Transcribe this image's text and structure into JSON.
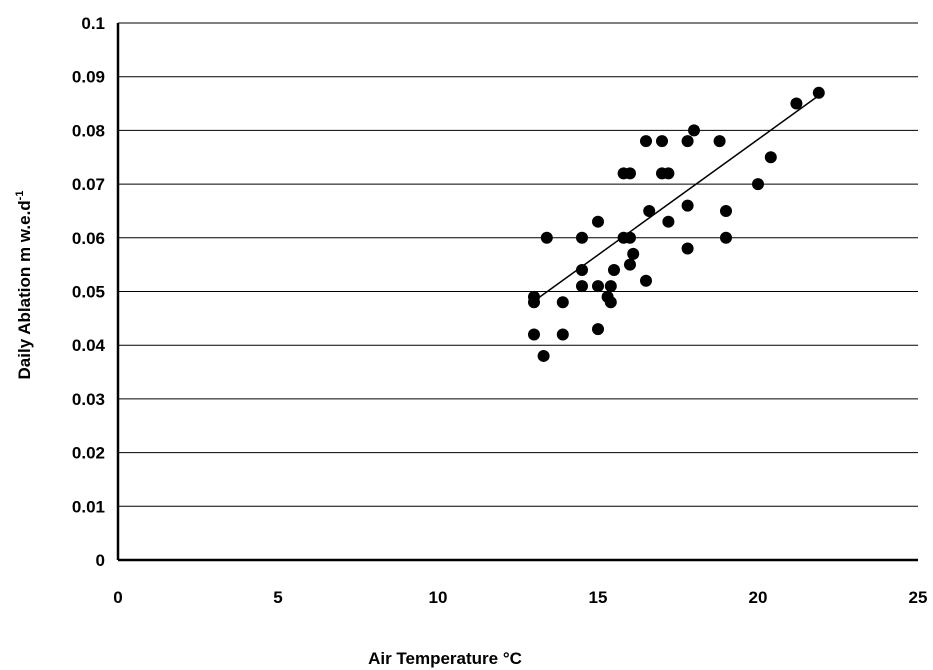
{
  "chart_data": {
    "type": "scatter",
    "title": "",
    "xlabel": "Air Temperature °C",
    "ylabel_main": "Daily Ablation m w.e.d",
    "ylabel_sup": "-1",
    "xlim": [
      0,
      25
    ],
    "ylim": [
      0,
      0.1
    ],
    "x_ticks": [
      "0",
      "5",
      "10",
      "15",
      "20",
      "25"
    ],
    "y_ticks": [
      "0",
      "0.01",
      "0.02",
      "0.03",
      "0.04",
      "0.05",
      "0.06",
      "0.07",
      "0.08",
      "0.09",
      "0.1"
    ],
    "grid": "horizontal",
    "legend": "none",
    "marker_color": "#000000",
    "series": [
      {
        "points": [
          [
            13.0,
            0.049
          ],
          [
            13.0,
            0.048
          ],
          [
            13.0,
            0.042
          ],
          [
            13.3,
            0.038
          ],
          [
            13.4,
            0.06
          ],
          [
            13.9,
            0.048
          ],
          [
            13.9,
            0.042
          ],
          [
            14.5,
            0.06
          ],
          [
            14.5,
            0.054
          ],
          [
            14.5,
            0.051
          ],
          [
            15.0,
            0.063
          ],
          [
            15.0,
            0.051
          ],
          [
            15.0,
            0.043
          ],
          [
            15.3,
            0.049
          ],
          [
            15.4,
            0.048
          ],
          [
            15.4,
            0.051
          ],
          [
            15.5,
            0.054
          ],
          [
            15.8,
            0.072
          ],
          [
            15.8,
            0.06
          ],
          [
            16.0,
            0.072
          ],
          [
            16.0,
            0.06
          ],
          [
            16.0,
            0.055
          ],
          [
            16.1,
            0.057
          ],
          [
            16.5,
            0.078
          ],
          [
            16.5,
            0.052
          ],
          [
            16.6,
            0.065
          ],
          [
            17.0,
            0.078
          ],
          [
            17.0,
            0.072
          ],
          [
            17.2,
            0.072
          ],
          [
            17.2,
            0.063
          ],
          [
            17.8,
            0.078
          ],
          [
            17.8,
            0.066
          ],
          [
            17.8,
            0.058
          ],
          [
            18.0,
            0.08
          ],
          [
            18.8,
            0.078
          ],
          [
            19.0,
            0.065
          ],
          [
            19.0,
            0.06
          ],
          [
            20.0,
            0.07
          ],
          [
            20.4,
            0.075
          ],
          [
            21.2,
            0.085
          ],
          [
            21.9,
            0.087
          ]
        ]
      }
    ],
    "trendline": {
      "x": [
        13.0,
        21.9
      ],
      "y": [
        0.0482,
        0.0865
      ]
    }
  }
}
